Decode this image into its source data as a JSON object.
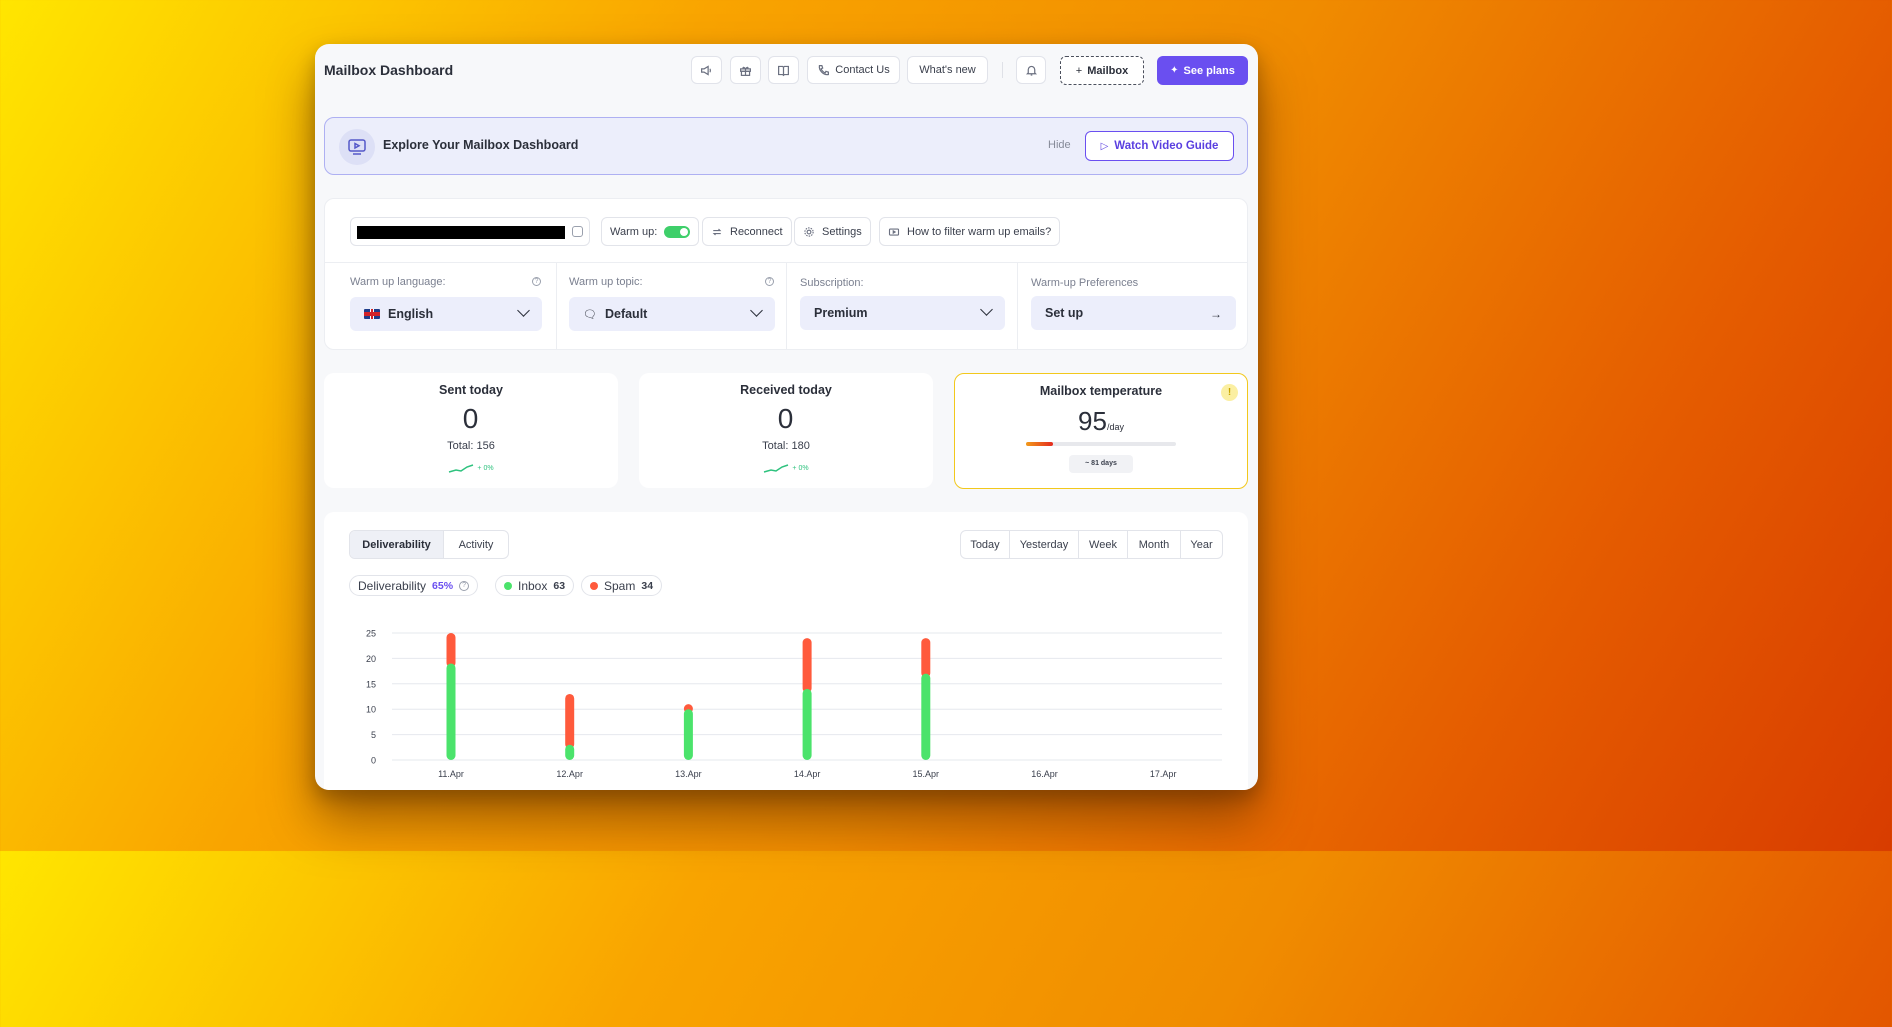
{
  "header": {
    "title": "Mailbox Dashboard",
    "contact_label": "Contact Us",
    "whats_new_label": "What's new",
    "mailbox_button": "Mailbox",
    "plans_button": "See plans"
  },
  "banner": {
    "title": "Explore Your Mailbox Dashboard",
    "hide_label": "Hide",
    "video_button": "Watch Video Guide"
  },
  "toolbar": {
    "warmup_label": "Warm up:",
    "warmup_enabled": true,
    "reconnect_label": "Reconnect",
    "settings_label": "Settings",
    "filter_label": "How to filter warm up emails?"
  },
  "settings": {
    "language_label": "Warm up language:",
    "language_value": "English",
    "topic_label": "Warm up topic:",
    "topic_value": "Default",
    "subscription_label": "Subscription:",
    "subscription_value": "Premium",
    "preferences_label": "Warm-up Preferences",
    "preferences_value": "Set up"
  },
  "stats": {
    "sent_title": "Sent today",
    "sent_value": "0",
    "sent_total": "Total: 156",
    "sent_trend": "+ 0%",
    "received_title": "Received today",
    "received_value": "0",
    "received_total": "Total: 180",
    "received_trend": "+ 0%"
  },
  "temperature": {
    "title": "Mailbox temperature",
    "value": "95",
    "unit": "/day",
    "days": "~ 81 days",
    "info": "!",
    "level": 0.18
  },
  "chart_tabs": [
    "Deliverability",
    "Activity"
  ],
  "ranges": [
    "Today",
    "Yesterday",
    "Week",
    "Month",
    "Year"
  ],
  "metrics": {
    "deliverability_label": "Deliverability",
    "deliverability_value": "65%",
    "inbox_label": "Inbox",
    "inbox_value": "63",
    "spam_label": "Spam",
    "spam_value": "34"
  },
  "colors": {
    "accent": "#6a4ff0",
    "inbox": "#4be36b",
    "spam": "#ff5a3c",
    "toggle": "#3ecf6a"
  },
  "chart_data": {
    "type": "bar",
    "stacked": true,
    "categories": [
      "11.Apr",
      "12.Apr",
      "13.Apr",
      "14.Apr",
      "15.Apr",
      "16.Apr",
      "17.Apr"
    ],
    "series": [
      {
        "name": "Inbox",
        "values": [
          19,
          3,
          10,
          14,
          17,
          0,
          0
        ]
      },
      {
        "name": "Spam",
        "values": [
          6,
          10,
          1,
          10,
          7,
          0,
          0
        ]
      }
    ],
    "yticks": [
      0,
      5,
      10,
      15,
      20,
      25
    ],
    "ylim": [
      0,
      25
    ],
    "grid": true
  }
}
